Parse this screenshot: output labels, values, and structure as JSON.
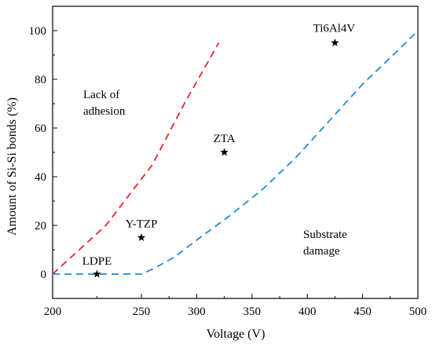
{
  "chart_data": {
    "type": "line",
    "xlabel": "Voltage (V)",
    "ylabel": "Amount of Si-Si bonds (%)",
    "x_axis": {
      "segments": [
        [
          200,
          250
        ],
        [
          250,
          500
        ]
      ],
      "ticks": [
        200,
        250,
        300,
        350,
        400,
        450,
        500
      ],
      "tick_labels": [
        "200",
        "250",
        "300",
        "350",
        "400",
        "450",
        "500"
      ]
    },
    "ylim": [
      -10,
      110
    ],
    "y_ticks": [
      0,
      20,
      40,
      60,
      80,
      100
    ],
    "y_tick_labels": [
      "0",
      "20",
      "40",
      "60",
      "80",
      "100"
    ],
    "grid": false,
    "series": [
      {
        "color": "#e8262b",
        "style": "dashed",
        "x": [
          200,
          230,
          260,
          290,
          320
        ],
        "y": [
          0,
          20,
          45,
          71,
          95
        ]
      },
      {
        "color": "#1f8ad0",
        "style": "dashed",
        "x": [
          200,
          230,
          250,
          260,
          280,
          300,
          330,
          360,
          390,
          420,
          450,
          480,
          500
        ],
        "y": [
          0,
          0,
          0,
          2,
          7,
          14,
          24,
          35,
          48,
          63,
          78,
          91,
          100
        ]
      }
    ],
    "points": [
      {
        "label": "LDPE",
        "x": 225,
        "y": 0
      },
      {
        "label": "Y-TZP",
        "x": 250,
        "y": 15
      },
      {
        "label": "ZTA",
        "x": 325,
        "y": 50
      },
      {
        "label": "Ti6Al4V",
        "x": 425,
        "y": 95
      }
    ],
    "region_labels": [
      {
        "lines": [
          "Lack of",
          "adhesion"
        ]
      },
      {
        "lines": [
          "Substrate",
          "damage"
        ]
      }
    ]
  }
}
